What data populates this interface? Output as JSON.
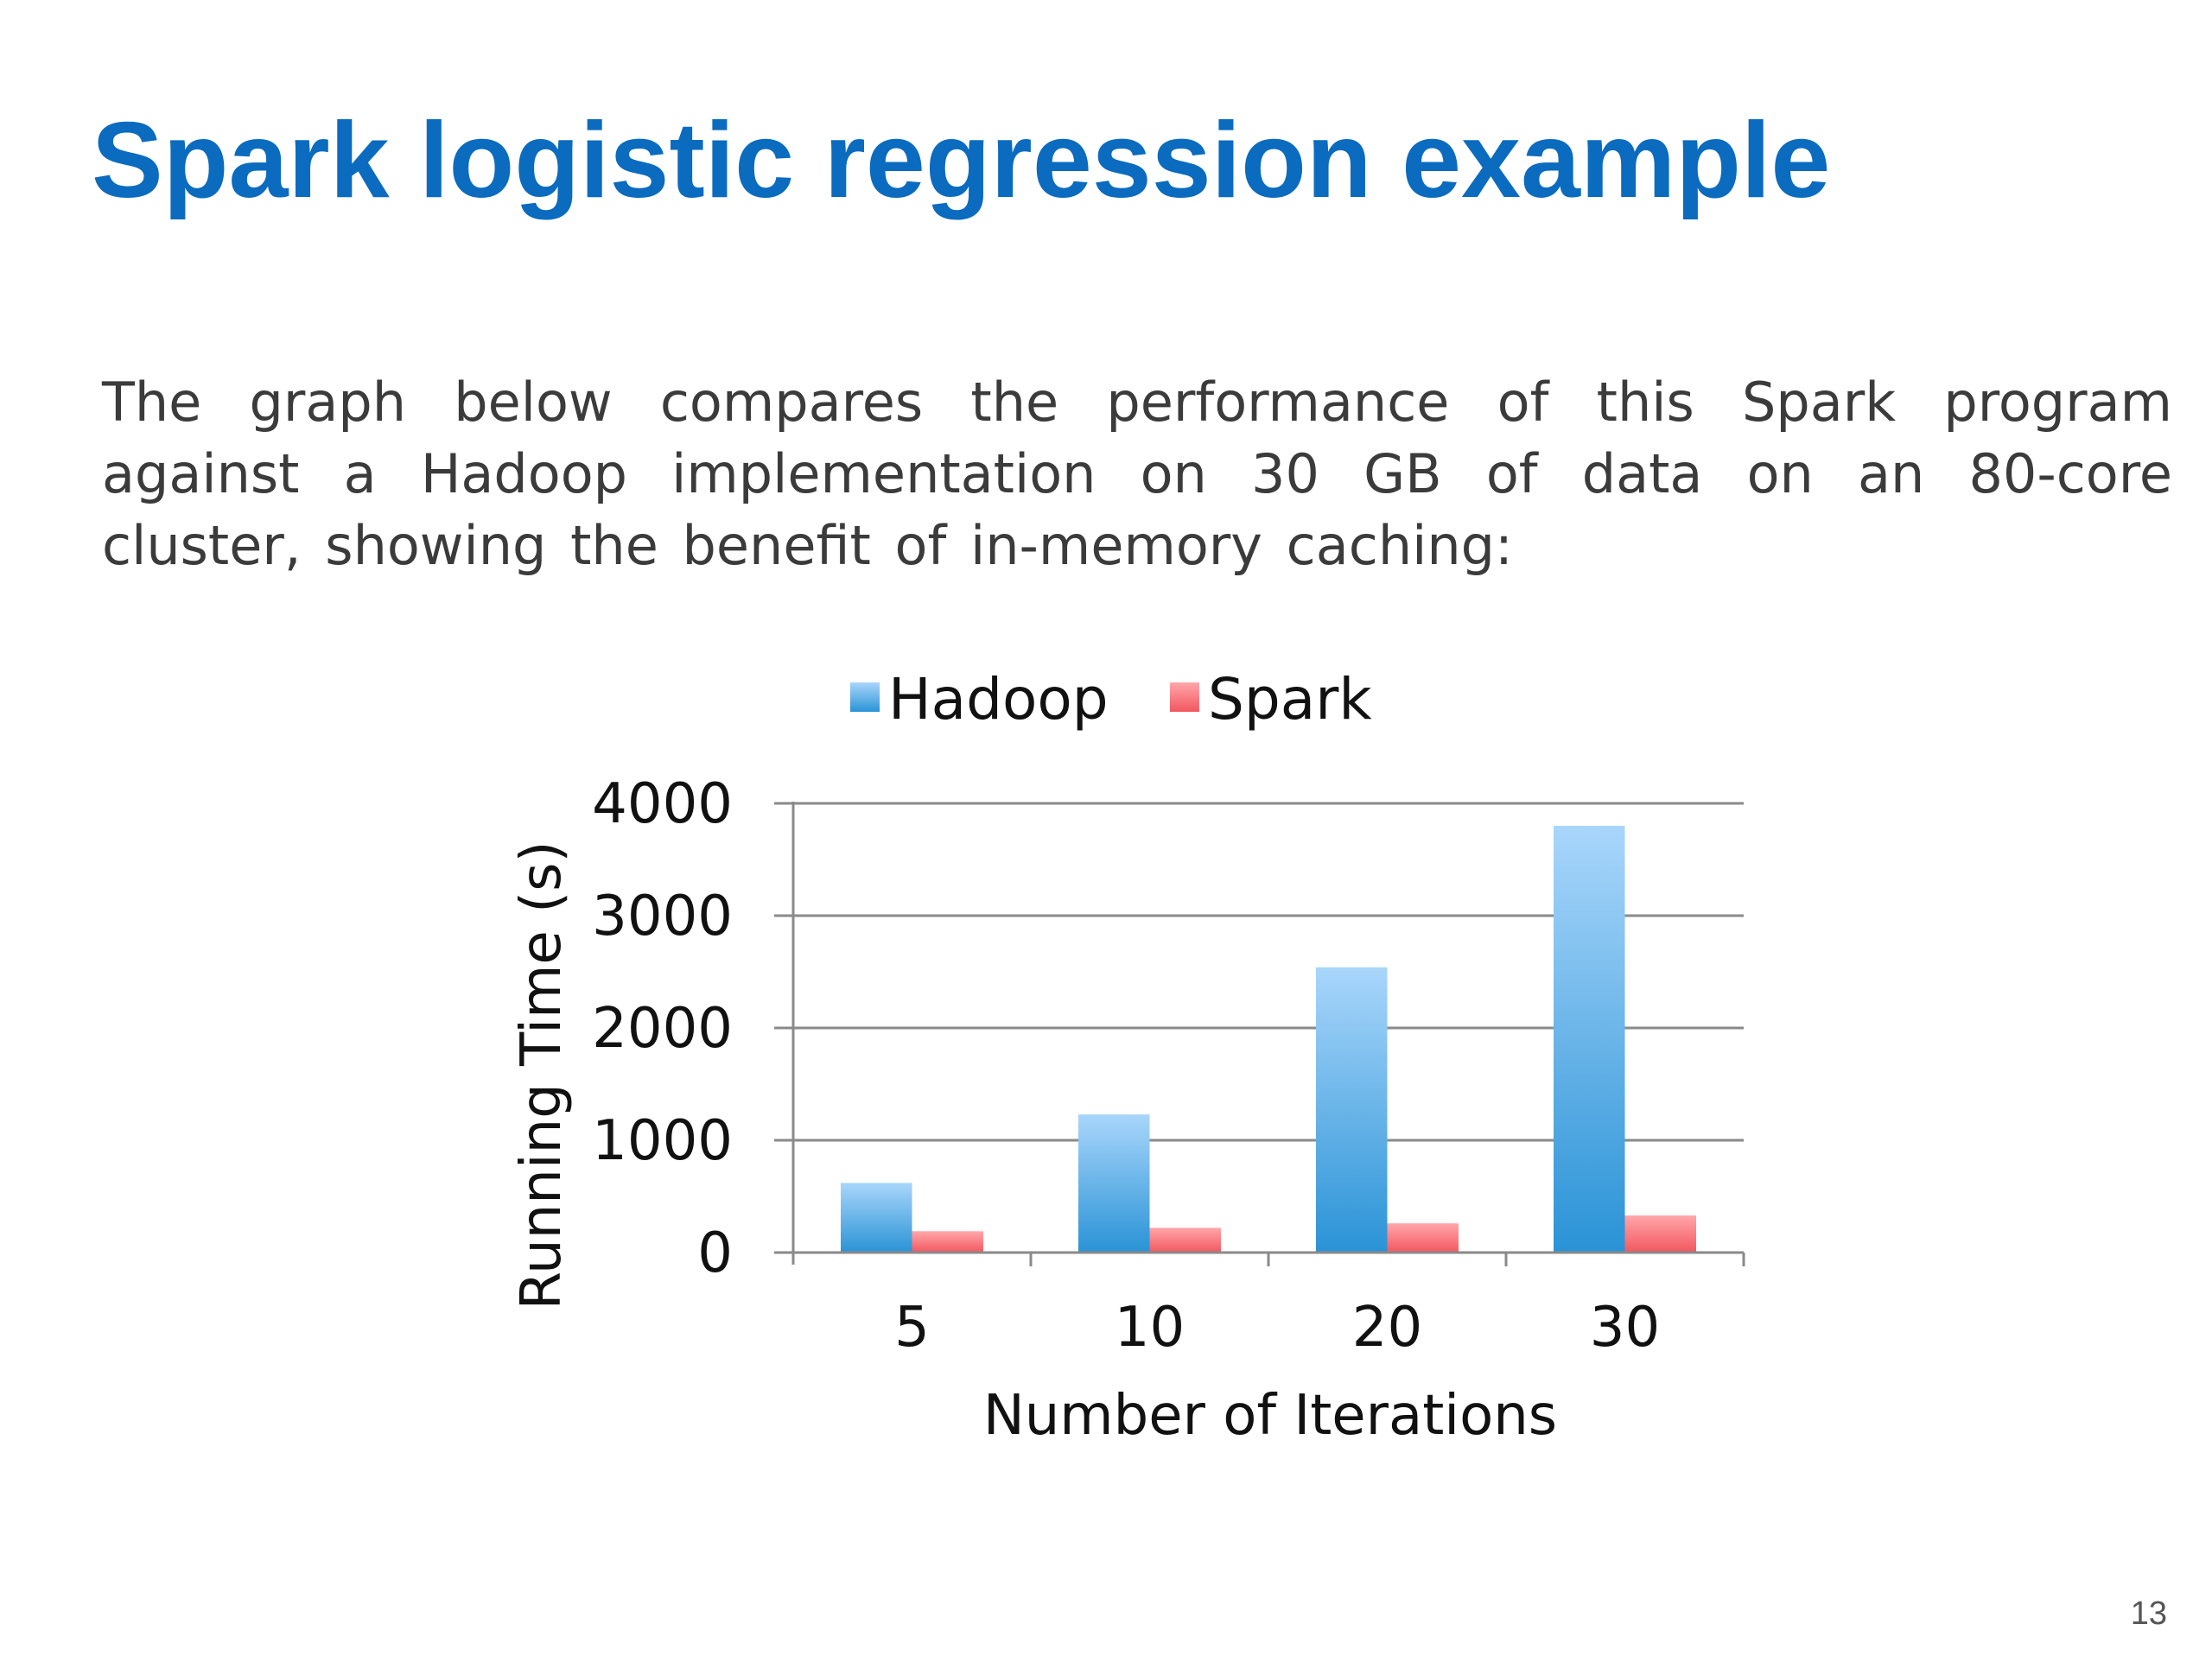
{
  "slide": {
    "title": "Spark logistic regression example",
    "description": "The graph below compares the performance of this Spark program against a Hadoop implementation on 30 GB of data on an 80-core cluster, showing the benefit of in-memory caching:",
    "page_number": "13"
  },
  "chart_data": {
    "type": "bar",
    "title": "",
    "xlabel": "Number of Iterations",
    "ylabel": "Running Time (s)",
    "categories": [
      "5",
      "10",
      "20",
      "30"
    ],
    "series": [
      {
        "name": "Hadoop",
        "values": [
          620,
          1230,
          2540,
          3800
        ],
        "color": "#5aaee6"
      },
      {
        "name": "Spark",
        "values": [
          190,
          220,
          260,
          330
        ],
        "color": "#f4747a"
      }
    ],
    "ylim": [
      0,
      4000
    ],
    "yticks": [
      "0",
      "1000",
      "2000",
      "3000",
      "4000"
    ],
    "grid": true,
    "legend_position": "top"
  }
}
